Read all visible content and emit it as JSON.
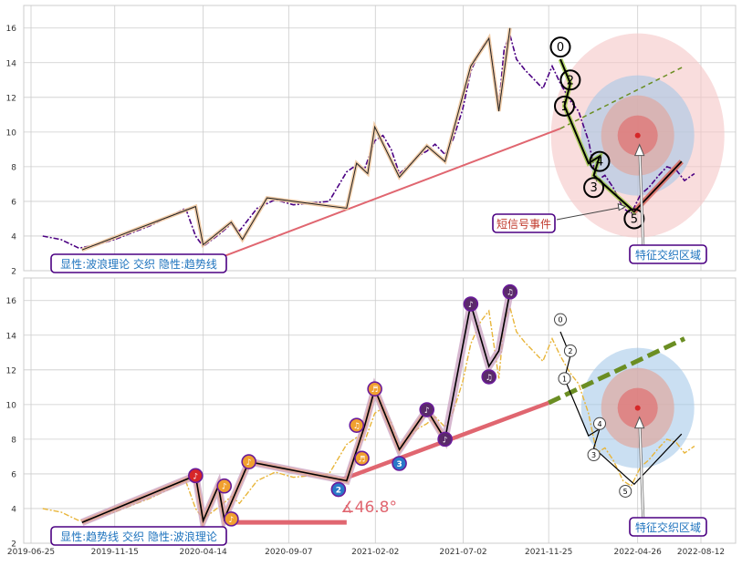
{
  "colors": {
    "grid": "#cccccc",
    "price_top": "#4b0082",
    "price_bottom": "#e8b53a",
    "trend": "#e06670",
    "trend_dashed_top": "#6b8e23",
    "trend_dashed_bottom": "#6b8e23",
    "wave_outline": "#f0c8a0",
    "box_border": "#4b0082",
    "box_text": "#1e73be",
    "label_red": "#c0392b",
    "target_outer": "#f5c6c6",
    "target_mid": "#9ec5e8",
    "target_inner": "#e0a8a0",
    "target_core": "#e07070"
  },
  "chart_data": [
    {
      "type": "line",
      "panel": "top",
      "ylim": [
        2,
        17.3
      ],
      "yticks": [
        "2",
        "4",
        "6",
        "8",
        "10",
        "12",
        "14",
        "16"
      ],
      "grid": true,
      "price_series": {
        "x": [
          "2019-07-15",
          "2019-08-15",
          "2019-09-15",
          "2019-10-15",
          "2019-11-15",
          "2019-12-15",
          "2020-01-15",
          "2020-02-15",
          "2020-03-15",
          "2020-04-01",
          "2020-04-14",
          "2020-05-15",
          "2020-06-01",
          "2020-06-15",
          "2020-07-15",
          "2020-08-15",
          "2020-09-15",
          "2020-10-15",
          "2020-11-15",
          "2020-12-15",
          "2021-01-01",
          "2021-01-15",
          "2021-02-01",
          "2021-02-15",
          "2021-03-01",
          "2021-03-15",
          "2021-04-01",
          "2021-04-15",
          "2021-05-01",
          "2021-05-15",
          "2021-06-01",
          "2021-06-15",
          "2021-07-01",
          "2021-07-15",
          "2021-08-01",
          "2021-08-15",
          "2021-09-01",
          "2021-09-10",
          "2021-09-20",
          "2021-10-01",
          "2021-10-15",
          "2021-11-01",
          "2021-11-15",
          "2021-12-01",
          "2021-12-15",
          "2022-01-01",
          "2022-01-15",
          "2022-02-01",
          "2022-02-15",
          "2022-03-01",
          "2022-03-15",
          "2022-04-01",
          "2022-04-15",
          "2022-05-01",
          "2022-05-15",
          "2022-06-01",
          "2022-06-15",
          "2022-07-01",
          "2022-07-15",
          "2022-08-01"
        ],
        "y": [
          4.0,
          3.8,
          3.3,
          3.5,
          3.8,
          4.2,
          4.6,
          5.1,
          5.6,
          4.0,
          3.4,
          4.2,
          4.7,
          4.3,
          5.6,
          6.1,
          5.8,
          5.9,
          6.0,
          7.7,
          8.1,
          7.9,
          9.5,
          9.8,
          9.0,
          7.6,
          8.1,
          8.6,
          8.9,
          9.3,
          8.7,
          9.6,
          11.3,
          13.5,
          14.8,
          15.4,
          11.5,
          14.8,
          15.6,
          14.2,
          13.6,
          13.0,
          12.5,
          13.8,
          12.8,
          11.8,
          11.2,
          9.5,
          7.2,
          7.5,
          6.8,
          5.6,
          5.3,
          6.4,
          6.8,
          7.5,
          8.0,
          7.8,
          7.2,
          7.6
        ]
      },
      "wave_points": {
        "x": [
          "2019-09-20",
          "2020-04-01",
          "2020-04-14",
          "2020-06-01",
          "2020-06-20",
          "2020-08-01",
          "2020-12-15",
          "2021-01-01",
          "2021-01-20",
          "2021-02-01",
          "2021-03-15",
          "2021-05-01",
          "2021-06-01",
          "2021-07-15",
          "2021-08-15",
          "2021-09-01",
          "2021-09-20"
        ],
        "y": [
          3.2,
          5.7,
          3.5,
          4.8,
          3.8,
          6.2,
          5.6,
          8.2,
          7.6,
          10.3,
          7.4,
          9.2,
          8.3,
          13.8,
          15.4,
          11.2,
          16.0
        ]
      },
      "trend_line": {
        "x": [
          "2020-05-01",
          "2021-12-15"
        ],
        "y": [
          2.6,
          10.2
        ]
      },
      "trend_extension": {
        "x": [
          "2021-12-15",
          "2022-07-15"
        ],
        "y": [
          10.2,
          13.8
        ]
      },
      "wave_labels": [
        {
          "label": "0",
          "x": "2021-12-15",
          "y": 14.9
        },
        {
          "label": "2",
          "x": "2022-01-01",
          "y": 13.0
        },
        {
          "label": "1",
          "x": "2021-12-22",
          "y": 11.5
        },
        {
          "label": "4",
          "x": "2022-02-20",
          "y": 8.3
        },
        {
          "label": "3",
          "x": "2022-02-10",
          "y": 6.8
        },
        {
          "label": "5",
          "x": "2022-04-20",
          "y": 5.0
        }
      ],
      "down_wave": {
        "x": [
          "2021-12-15",
          "2022-01-01",
          "2021-12-22",
          "2022-02-01",
          "2022-02-20",
          "2022-02-10",
          "2022-04-20",
          "2022-07-10"
        ],
        "y": [
          14.2,
          12.8,
          11.5,
          8.2,
          8.6,
          7.5,
          5.4,
          8.3
        ]
      },
      "target_center": {
        "x": "2022-04-26",
        "y": 9.8
      },
      "signal_label": "短信号事件",
      "zone_label": "特征交织区域",
      "legend_text": "显性:波浪理论 交织 隐性:趋势线"
    },
    {
      "type": "line",
      "panel": "bottom",
      "ylim": [
        2,
        17.3
      ],
      "yticks": [
        "2",
        "4",
        "6",
        "8",
        "10",
        "12",
        "14",
        "16"
      ],
      "xtick_labels": [
        "2019-06-25",
        "2019-11-15",
        "2020-04-14",
        "2020-09-07",
        "2021-02-02",
        "2021-07-02",
        "2021-11-25",
        "2022-04-26",
        "2022-08-12"
      ],
      "grid": true,
      "trend_line": {
        "x": [
          "2020-12-01",
          "2021-11-25"
        ],
        "y": [
          5.6,
          10.1
        ]
      },
      "trend_extension": {
        "x": [
          "2021-11-25",
          "2022-07-15"
        ],
        "y": [
          10.1,
          13.8
        ]
      },
      "angle_label": "∡46.8°",
      "waves": {
        "x": [
          "2019-09-20",
          "2020-04-01",
          "2020-04-14",
          "2020-05-10",
          "2020-05-20",
          "2020-07-01",
          "2020-12-15",
          "2021-01-15",
          "2021-02-01",
          "2021-03-15",
          "2021-05-01",
          "2021-06-01",
          "2021-07-15",
          "2021-08-15",
          "2021-09-01",
          "2021-09-20"
        ],
        "y": [
          3.2,
          5.9,
          3.3,
          5.3,
          3.4,
          6.7,
          5.6,
          8.8,
          10.9,
          7.4,
          9.7,
          8.0,
          15.8,
          12.2,
          13.1,
          16.5
        ]
      },
      "note_markers": [
        {
          "x": "2020-04-01",
          "y": 5.9,
          "color": "red",
          "label": "♪"
        },
        {
          "x": "2020-05-20",
          "y": 5.3,
          "color": "orange",
          "label": "♪"
        },
        {
          "x": "2020-06-01",
          "y": 3.4,
          "color": "orange",
          "label": "♪"
        },
        {
          "x": "2020-07-01",
          "y": 6.7,
          "color": "orange",
          "label": "♪"
        },
        {
          "x": "2020-12-01",
          "y": 5.1,
          "color": "blue",
          "label": "2"
        },
        {
          "x": "2021-01-01",
          "y": 8.8,
          "color": "orange",
          "label": "♫"
        },
        {
          "x": "2021-01-10",
          "y": 6.9,
          "color": "orange",
          "label": "♬"
        },
        {
          "x": "2021-02-01",
          "y": 10.9,
          "color": "orange",
          "label": "♬"
        },
        {
          "x": "2021-03-15",
          "y": 6.6,
          "color": "blue",
          "label": "3"
        },
        {
          "x": "2021-05-01",
          "y": 9.7,
          "color": "purple",
          "label": "♪"
        },
        {
          "x": "2021-06-01",
          "y": 8.0,
          "color": "purple",
          "label": "♪"
        },
        {
          "x": "2021-07-15",
          "y": 15.8,
          "color": "purple",
          "label": "♪"
        },
        {
          "x": "2021-08-15",
          "y": 11.6,
          "color": "purple",
          "label": "♫"
        },
        {
          "x": "2021-09-20",
          "y": 16.5,
          "color": "purple",
          "label": "♫"
        }
      ],
      "wave_labels": [
        {
          "label": "0",
          "x": "2021-12-15",
          "y": 14.9
        },
        {
          "label": "2",
          "x": "2022-01-01",
          "y": 13.1
        },
        {
          "label": "1",
          "x": "2021-12-22",
          "y": 11.5
        },
        {
          "label": "4",
          "x": "2022-02-20",
          "y": 8.9
        },
        {
          "label": "3",
          "x": "2022-02-10",
          "y": 7.1
        },
        {
          "label": "5",
          "x": "2022-04-05",
          "y": 5.0
        }
      ],
      "zone_label": "特征交织区域",
      "legend_text": "显性:趋势线 交织 隐性:波浪理论"
    }
  ]
}
